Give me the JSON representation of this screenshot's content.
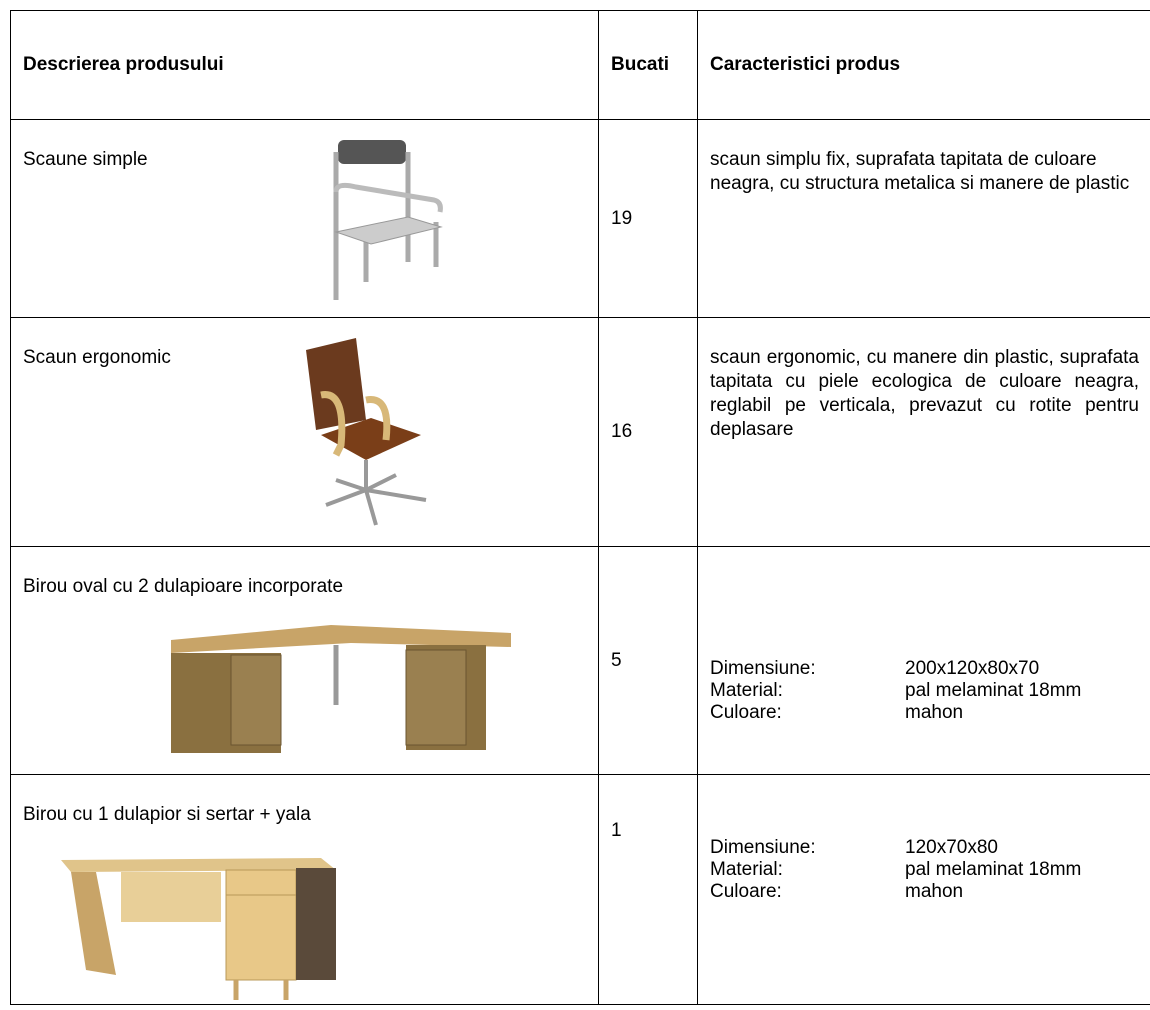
{
  "table": {
    "header": [
      "Descrierea produsului",
      "Bucati",
      "Caracteristici produs"
    ],
    "rows": [
      {
        "description": "Scaune simple",
        "quantity": "19",
        "characteristics": "scaun simplu fix, suprafata tapitata de culoare neagra, cu structura metalica si manere de plastic"
      },
      {
        "description": "Scaun ergonomic",
        "quantity": "16",
        "characteristics": "scaun ergonomic, cu manere din plastic, suprafata tapitata cu piele ecologica de culoare neagra, reglabil pe verticala, prevazut cu rotite pentru deplasare"
      },
      {
        "description": "Birou oval cu 2 dulapioare incorporate",
        "quantity": "5",
        "specs": [
          {
            "label": "Dimensiune:",
            "value": "200x120x80x70"
          },
          {
            "label": "Material:",
            "value": "pal melaminat 18mm"
          },
          {
            "label": "Culoare:",
            "value": "mahon"
          }
        ]
      },
      {
        "description": "Birou cu 1 dulapior si sertar + yala",
        "quantity": "1",
        "specs": [
          {
            "label": "Dimensiune:",
            "value": "120x70x80"
          },
          {
            "label": "Material:",
            "value": "pal melaminat 18mm"
          },
          {
            "label": "Culoare:",
            "value": "mahon"
          }
        ]
      }
    ]
  }
}
